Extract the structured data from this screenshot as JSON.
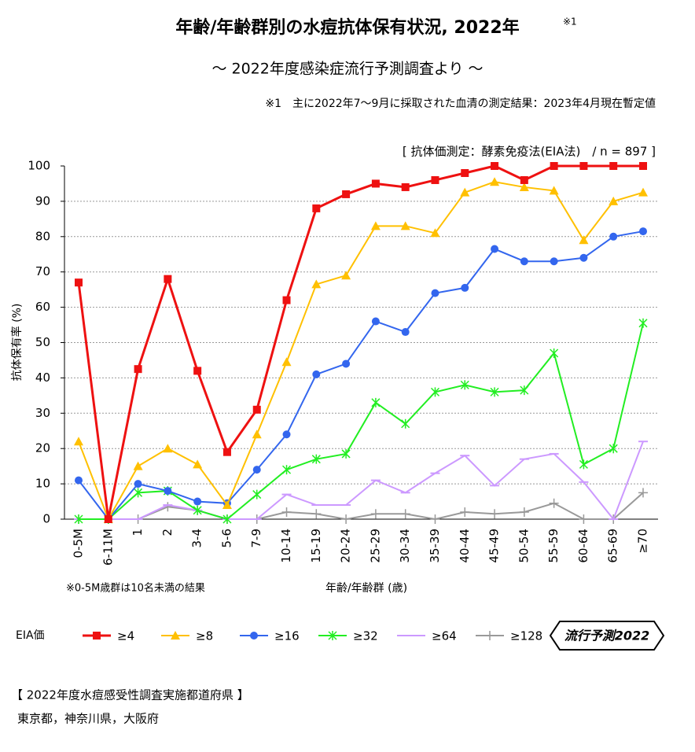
{
  "chart_data": {
    "type": "line",
    "title": "年齢/年齢群別の水痘抗体保有状況, 2022年",
    "title_note": "※1",
    "subtitle": "～ 2022年度感染症流行予測調査より ～",
    "note": "※1　主に2022年7～9月に採取された血清の測定結果：2023年4月現在暫定値",
    "method": "[ 抗体価測定：酵素免疫法(EIA法)　/ n = 897 ]",
    "y_label": "抗体保有率 (%)",
    "x_label": "年齢/年齢群 (歳)",
    "footnote": "※0-5M歳群は10名未満の結果",
    "legend_title": "EIA価",
    "categories": [
      "0-5M",
      "6-11M",
      "1",
      "2",
      "3-4",
      "5-6",
      "7-9",
      "10-14",
      "15-19",
      "20-24",
      "25-29",
      "30-34",
      "35-39",
      "40-44",
      "45-49",
      "50-54",
      "55-59",
      "60-64",
      "65-69",
      "≥70"
    ],
    "ylim": [
      0,
      100
    ],
    "yticks": [
      0,
      10,
      20,
      30,
      40,
      50,
      60,
      70,
      80,
      90,
      100
    ],
    "grid": true,
    "series": [
      {
        "name": "≥4",
        "color": "#ee1111",
        "marker": "square",
        "values": [
          67,
          0,
          42.5,
          68,
          42,
          19,
          31,
          62,
          88,
          92,
          95,
          94,
          96,
          98,
          100,
          96,
          100,
          100,
          100,
          100
        ]
      },
      {
        "name": "≥8",
        "color": "#ffc000",
        "marker": "triangle",
        "values": [
          22,
          0,
          15,
          20,
          15.5,
          4,
          24,
          44.5,
          66.5,
          69,
          83,
          83,
          81,
          92.5,
          95.5,
          94,
          93,
          79,
          90,
          92.5
        ]
      },
      {
        "name": "≥16",
        "color": "#3366ee",
        "marker": "circle",
        "values": [
          11,
          0,
          10,
          8,
          5,
          4.5,
          14,
          24,
          41,
          44,
          56,
          53,
          64,
          65.5,
          76.5,
          73,
          73,
          74,
          80,
          81.5
        ]
      },
      {
        "name": "≥32",
        "color": "#22ee22",
        "marker": "star",
        "values": [
          0,
          0,
          7.5,
          8,
          2.5,
          0,
          7,
          14,
          17,
          18.5,
          33,
          27,
          36,
          38,
          36,
          36.5,
          47,
          15.5,
          20,
          55.5
        ]
      },
      {
        "name": "≥64",
        "color": "#cc99ff",
        "marker": "dash",
        "values": [
          0,
          0,
          0,
          4,
          2.5,
          0,
          0,
          7,
          4,
          4,
          11,
          7.5,
          13,
          18,
          9.5,
          17,
          18.5,
          10.5,
          0,
          22
        ]
      },
      {
        "name": "≥128",
        "color": "#999999",
        "marker": "plus",
        "values": [
          0,
          0,
          0,
          3.5,
          2.5,
          0,
          0,
          2,
          1.5,
          0,
          1.5,
          1.5,
          0,
          2,
          1.5,
          2,
          4.5,
          0,
          0,
          7.5
        ]
      }
    ]
  },
  "badge": "流行予測2022",
  "footer": {
    "title": "【 2022年度水痘感受性調査実施都道府県 】",
    "prefectures": "東京都，神奈川県，大阪府"
  }
}
